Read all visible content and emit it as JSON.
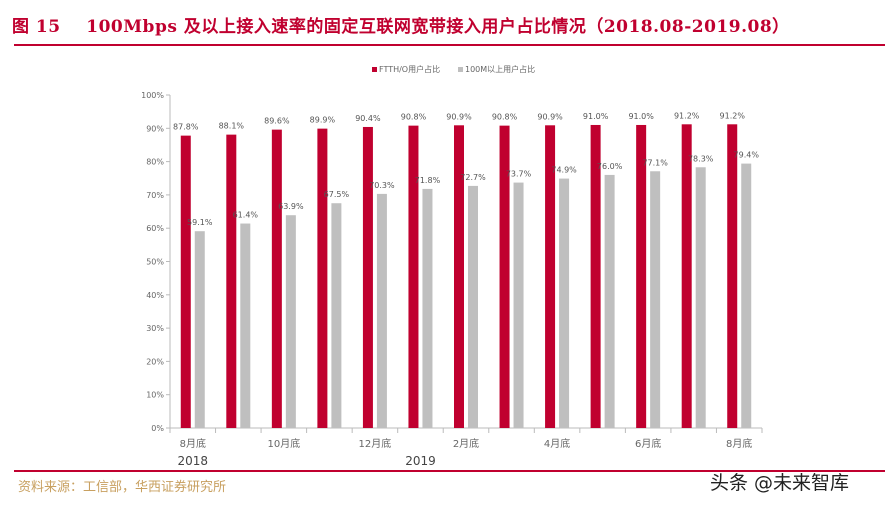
{
  "title": "图 15    100Mbps 及以上接入速率的固定互联网宽带接入用户占比情况（2018.08-2019.08）",
  "source": "资料来源：工信部，华西证券研究所",
  "watermark": "头条 @未来智库",
  "chart_data": {
    "type": "bar",
    "categories": [
      "8月底",
      "",
      "10月底",
      "",
      "12月底",
      "",
      "2月底",
      "",
      "4月底",
      "",
      "6月底",
      "",
      "8月底"
    ],
    "year_labels": [
      "2018",
      "2019"
    ],
    "series": [
      {
        "name": "FTTH/O用户占比",
        "color": "#c0002f",
        "values": [
          87.8,
          88.1,
          89.6,
          89.9,
          90.4,
          90.8,
          90.9,
          90.8,
          90.9,
          91.0,
          91.0,
          91.2,
          91.2
        ]
      },
      {
        "name": "100M以上用户占比",
        "color": "#bfbfbf",
        "values": [
          59.1,
          61.4,
          63.9,
          67.5,
          70.3,
          71.8,
          72.7,
          73.7,
          74.9,
          76.0,
          77.1,
          78.3,
          79.4
        ]
      }
    ],
    "ylim": [
      0,
      100
    ],
    "yticks": [
      "0%",
      "10%",
      "20%",
      "30%",
      "40%",
      "50%",
      "60%",
      "70%",
      "80%",
      "90%",
      "100%"
    ],
    "legend": "top",
    "grid": false
  }
}
